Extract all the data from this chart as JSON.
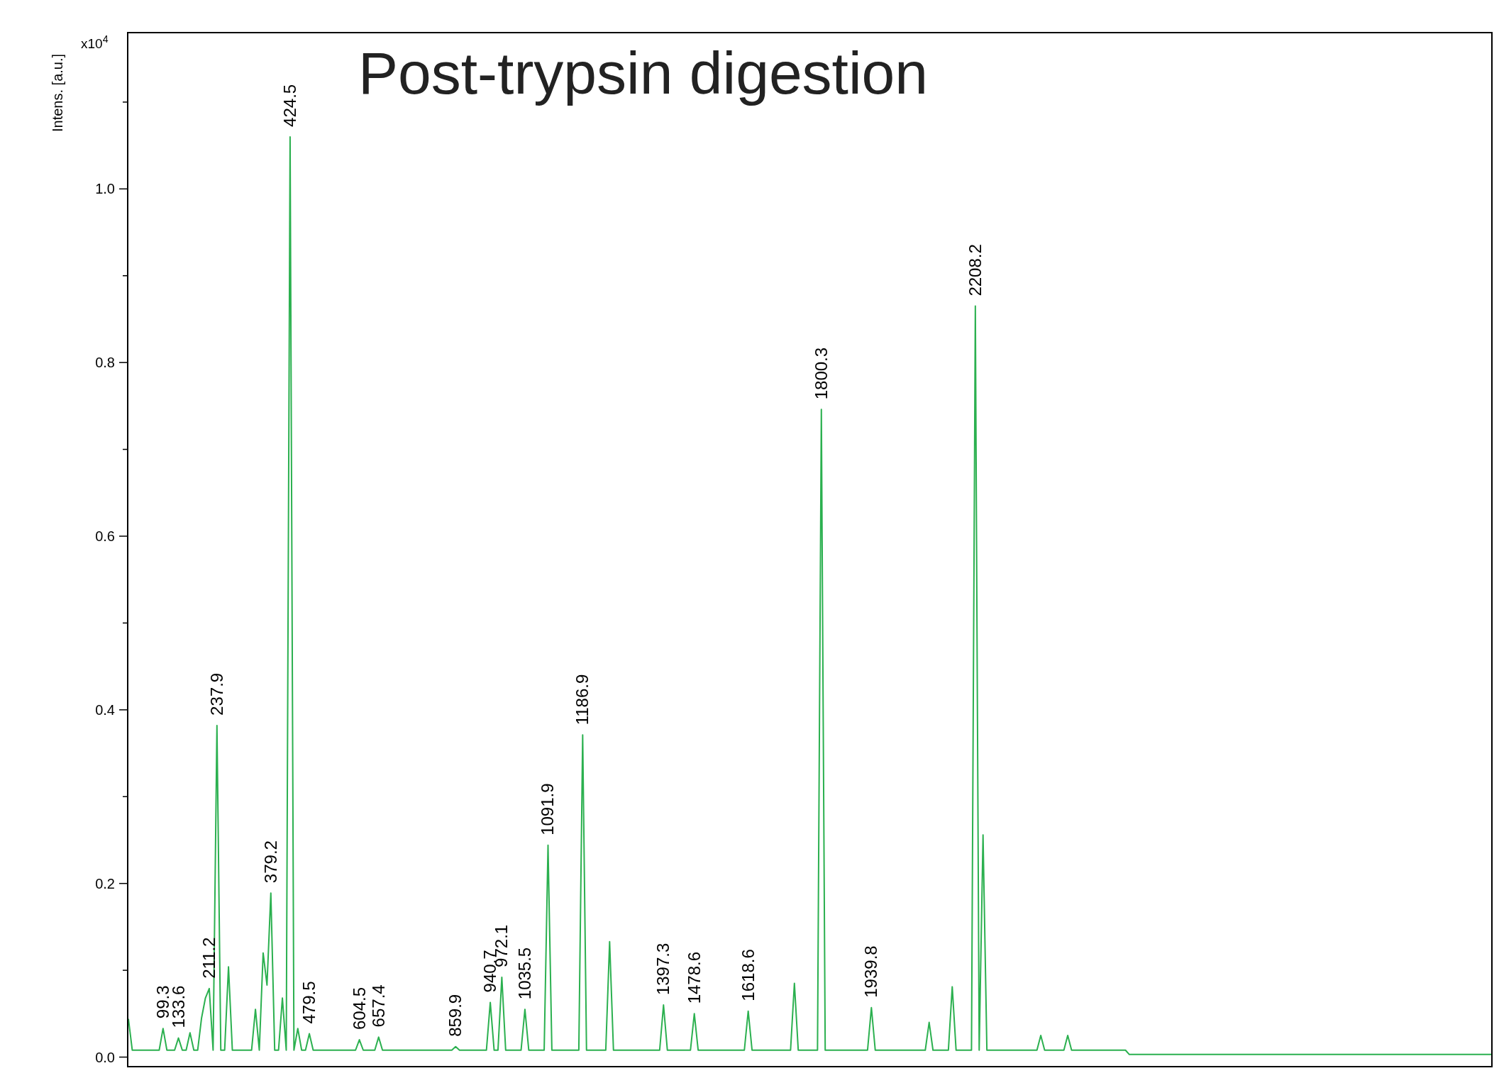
{
  "chart_data": {
    "type": "line",
    "title": "Post-trypsin digestion",
    "ylabel": "Intens. [a.u.]",
    "annotations": [
      "x10$^{4}$",
      {
        "text": "99.3",
        "y": 0.033
      },
      {
        "text": "133.6",
        "y": 0.022
      },
      {
        "text": "211.2",
        "y": 0.079
      },
      {
        "text": "237.9",
        "y": 0.382
      },
      {
        "text": "379.2",
        "y": 0.189
      },
      {
        "text": "424.5",
        "y": 1.06
      },
      {
        "text": "479.5",
        "y": 0.027
      },
      {
        "text": "604.5",
        "y": 0.02
      },
      {
        "text": "657.4",
        "y": 0.023
      },
      {
        "text": "859.9",
        "y": 0.012
      },
      {
        "text": "940.7",
        "y": 0.063
      },
      {
        "text": "972.1",
        "y": 0.092
      },
      {
        "text": "1035.5",
        "y": 0.055
      },
      {
        "text": "1091.9",
        "y": 0.244
      },
      {
        "text": "1186.9",
        "y": 0.371
      },
      {
        "text": "1397.3",
        "y": 0.06
      },
      {
        "text": "1478.6",
        "y": 0.05
      },
      {
        "text": "1618.6",
        "y": 0.053
      },
      {
        "text": "1800.3",
        "y": 0.746
      },
      {
        "text": "1939.8",
        "y": 0.057
      },
      {
        "text": "2208.2",
        "y": 0.865
      }
    ],
    "categories": [
      null,
      null,
      null,
      null,
      null,
      null,
      null,
      null,
      null,
      null,
      null,
      null,
      null,
      null,
      null,
      null,
      null,
      null,
      null,
      null,
      null,
      null,
      null,
      null,
      null,
      null,
      null,
      null,
      null,
      null,
      null,
      null,
      null,
      null,
      null,
      null,
      null,
      null,
      null,
      null,
      null,
      null,
      null,
      null,
      null,
      null,
      null,
      null,
      null,
      null,
      null,
      null,
      null,
      null,
      null,
      null,
      null,
      null,
      null,
      null,
      null,
      null,
      null,
      null,
      null,
      null,
      null,
      null,
      null,
      null,
      null,
      null,
      null,
      null,
      null,
      null,
      null,
      null,
      null,
      null,
      null,
      null,
      null,
      null,
      null,
      null,
      null,
      null,
      null,
      null,
      null,
      null,
      null,
      null,
      null,
      null,
      null,
      null,
      null,
      null,
      null,
      null,
      null,
      null,
      null,
      null,
      null,
      null,
      null,
      null,
      null,
      null,
      null,
      null,
      null,
      null,
      null,
      null,
      null,
      null,
      null,
      null,
      null,
      null,
      null,
      null,
      null,
      null,
      null,
      null,
      null,
      null,
      null,
      null,
      null,
      null,
      null,
      null,
      null,
      null,
      null,
      null,
      null,
      null,
      null,
      null,
      null,
      null,
      null,
      null,
      null,
      null,
      null,
      null,
      null,
      null,
      null,
      null,
      null,
      null,
      null,
      null,
      null,
      null,
      null,
      null,
      null,
      null,
      null,
      null,
      null,
      null,
      null,
      null,
      null,
      null,
      null,
      null,
      null,
      null,
      null,
      null,
      null,
      null,
      null,
      null,
      null,
      null,
      null,
      null,
      null,
      null,
      null,
      null,
      null,
      null,
      null,
      null,
      null,
      null,
      null,
      null,
      null,
      null,
      null,
      null,
      null,
      null,
      null,
      null,
      null,
      null,
      null,
      null,
      null,
      null,
      null,
      null,
      null,
      null,
      null,
      null,
      null,
      null,
      null,
      null,
      null,
      null,
      null,
      null,
      null,
      null,
      null,
      null,
      null,
      null,
      null,
      null,
      null,
      null,
      null,
      null,
      null,
      null,
      null,
      null,
      null,
      null,
      null,
      null,
      null,
      null,
      null,
      null,
      null,
      null,
      null,
      null,
      null,
      null,
      null,
      null,
      null,
      null,
      null,
      null,
      null,
      null,
      null,
      null,
      null,
      null,
      null,
      null,
      null,
      null,
      null,
      null,
      null,
      null,
      null,
      null,
      null,
      null,
      null,
      null,
      null,
      null,
      null,
      null,
      null,
      null,
      null,
      null,
      null,
      null,
      null,
      null,
      null,
      null,
      null,
      null,
      null,
      null,
      null,
      null,
      null,
      null,
      null,
      null,
      null,
      null,
      null,
      null,
      null,
      null,
      null,
      null,
      null,
      null,
      null,
      null,
      null,
      null,
      null,
      null,
      null,
      null,
      null,
      null,
      null,
      null,
      null,
      null,
      null,
      null,
      null,
      null,
      null,
      null,
      null,
      null,
      null,
      null,
      null,
      null,
      null,
      null,
      null,
      null,
      null,
      null,
      null,
      null,
      null
    ],
    "series": [
      {
        "color": "#2bb04f",
        "values": [
          0.044,
          0.008,
          0.008,
          0.008,
          0.008,
          0.008,
          0.008,
          0.008,
          0.008,
          0.033,
          0.008,
          0.008,
          0.008,
          0.022,
          0.008,
          0.008,
          0.028,
          0.008,
          0.008,
          0.045,
          0.068,
          0.079,
          0.008,
          0.382,
          0.008,
          0.008,
          0.104,
          0.008,
          0.008,
          0.008,
          0.008,
          0.008,
          0.008,
          0.055,
          0.008,
          0.12,
          0.083,
          0.189,
          0.008,
          0.008,
          0.068,
          0.008,
          1.06,
          0.008,
          0.033,
          0.008,
          0.008,
          0.027,
          0.008,
          0.008,
          0.008,
          0.008,
          0.008,
          0.008,
          0.008,
          0.008,
          0.008,
          0.008,
          0.008,
          0.008,
          0.02,
          0.008,
          0.008,
          0.008,
          0.008,
          0.023,
          0.008,
          0.008,
          0.008,
          0.008,
          0.008,
          0.008,
          0.008,
          0.008,
          0.008,
          0.008,
          0.008,
          0.008,
          0.008,
          0.008,
          0.008,
          0.008,
          0.008,
          0.008,
          0.008,
          0.012,
          0.008,
          0.008,
          0.008,
          0.008,
          0.008,
          0.008,
          0.008,
          0.008,
          0.063,
          0.008,
          0.008,
          0.092,
          0.008,
          0.008,
          0.008,
          0.008,
          0.008,
          0.055,
          0.008,
          0.008,
          0.008,
          0.008,
          0.008,
          0.244,
          0.008,
          0.008,
          0.008,
          0.008,
          0.008,
          0.008,
          0.008,
          0.008,
          0.371,
          0.008,
          0.008,
          0.008,
          0.008,
          0.008,
          0.008,
          0.133,
          0.008,
          0.008,
          0.008,
          0.008,
          0.008,
          0.008,
          0.008,
          0.008,
          0.008,
          0.008,
          0.008,
          0.008,
          0.008,
          0.06,
          0.008,
          0.008,
          0.008,
          0.008,
          0.008,
          0.008,
          0.008,
          0.05,
          0.008,
          0.008,
          0.008,
          0.008,
          0.008,
          0.008,
          0.008,
          0.008,
          0.008,
          0.008,
          0.008,
          0.008,
          0.008,
          0.053,
          0.008,
          0.008,
          0.008,
          0.008,
          0.008,
          0.008,
          0.008,
          0.008,
          0.008,
          0.008,
          0.008,
          0.085,
          0.008,
          0.008,
          0.008,
          0.008,
          0.008,
          0.008,
          0.746,
          0.008,
          0.008,
          0.008,
          0.008,
          0.008,
          0.008,
          0.008,
          0.008,
          0.008,
          0.008,
          0.008,
          0.008,
          0.057,
          0.008,
          0.008,
          0.008,
          0.008,
          0.008,
          0.008,
          0.008,
          0.008,
          0.008,
          0.008,
          0.008,
          0.008,
          0.008,
          0.008,
          0.04,
          0.008,
          0.008,
          0.008,
          0.008,
          0.008,
          0.081,
          0.008,
          0.008,
          0.008,
          0.008,
          0.008,
          0.865,
          0.008,
          0.256,
          0.008,
          0.008,
          0.008,
          0.008,
          0.008,
          0.008,
          0.008,
          0.008,
          0.008,
          0.008,
          0.008,
          0.008,
          0.008,
          0.008,
          0.025,
          0.008,
          0.008,
          0.008,
          0.008,
          0.008,
          0.008,
          0.025,
          0.008,
          0.008,
          0.008,
          0.008,
          0.008,
          0.008,
          0.008,
          0.008,
          0.008,
          0.008,
          0.008,
          0.008,
          0.008,
          0.008,
          0.008,
          0.003,
          0.003,
          0.003,
          0.003,
          0.003,
          0.003,
          0.003,
          0.003,
          0.003,
          0.003,
          0.003,
          0.003,
          0.003,
          0.003,
          0.003,
          0.003,
          0.003,
          0.003,
          0.003,
          0.003,
          0.003,
          0.003,
          0.003,
          0.003,
          0.003,
          0.003,
          0.003,
          0.003,
          0.003,
          0.003,
          0.003,
          0.003,
          0.003,
          0.003,
          0.003,
          0.003,
          0.003,
          0.003,
          0.003,
          0.003,
          0.003,
          0.003,
          0.003,
          0.003,
          0.003,
          0.003,
          0.003,
          0.003,
          0.003,
          0.003,
          0.003,
          0.003,
          0.003,
          0.003,
          0.003,
          0.003,
          0.003,
          0.003,
          0.003,
          0.003,
          0.003,
          0.003,
          0.003,
          0.003,
          0.003,
          0.003,
          0.003,
          0.003,
          0.003,
          0.003,
          0.003,
          0.003,
          0.003,
          0.003,
          0.003,
          0.003,
          0.003,
          0.003,
          0.003,
          0.003,
          0.003,
          0.003,
          0.003,
          0.003,
          0.003,
          0.003,
          0.003,
          0.003,
          0.003,
          0.003,
          0.003,
          0.003,
          0.003,
          0.003,
          0.003
        ]
      }
    ],
    "ylim": [
      -0.011,
      1.18
    ],
    "yticks": [
      {
        "value": 0,
        "label": "0.0"
      },
      {
        "value": 0.1,
        "label": null
      },
      {
        "value": 0.2,
        "label": "0.2"
      },
      {
        "value": 0.3,
        "label": null
      },
      {
        "value": 0.4,
        "label": "0.4"
      },
      {
        "value": 0.5,
        "label": null
      },
      {
        "value": 0.6,
        "label": "0.6"
      },
      {
        "value": 0.7,
        "label": null
      },
      {
        "value": 0.8,
        "label": "0.8"
      },
      {
        "value": 0.9,
        "label": null
      },
      {
        "value": 1.0,
        "label": "1.0"
      },
      {
        "value": 1.1,
        "label": null
      }
    ],
    "tick_labels": "y",
    "grid": false,
    "line_style": "solid",
    "marker": "none"
  }
}
